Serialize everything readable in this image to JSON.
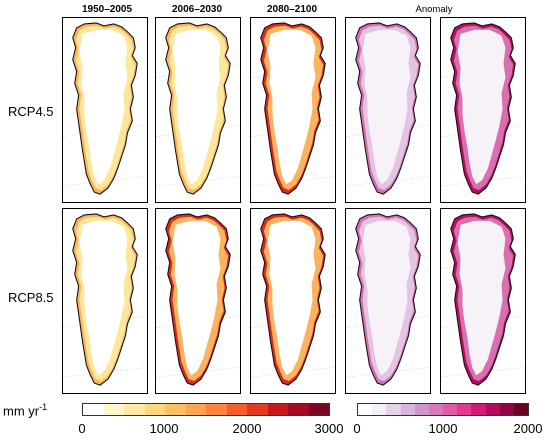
{
  "columns": [
    "1950–2005",
    "2006–2030",
    "2080–2100",
    "Anomaly"
  ],
  "rows": [
    "RCP4.5",
    "RCP8.5"
  ],
  "colorbar_label": "mm yr",
  "colorbar_label_sup": "-1",
  "colorbar_left": {
    "ticks": [
      "0",
      "1000",
      "2000",
      "3000"
    ],
    "colors": [
      "#ffffff",
      "#fff6cc",
      "#ffe9a3",
      "#ffd782",
      "#fec067",
      "#fda552",
      "#fb8440",
      "#f25f2e",
      "#e33a22",
      "#c8171e",
      "#a30b22",
      "#7a0524"
    ]
  },
  "colorbar_right": {
    "ticks": [
      "0",
      "1000",
      "2000"
    ],
    "colors": [
      "#ffffff",
      "#f4eef6",
      "#e6d3e9",
      "#d8b5db",
      "#cf97c9",
      "#d47ab8",
      "#de5ba5",
      "#e33a8c",
      "#d01c73",
      "#b00c5a",
      "#8e0546",
      "#68001f"
    ]
  },
  "map_colors": {
    "coast": "#111111",
    "ice_interior": "#ffffff",
    "anomaly_interior": "#f6f2f8",
    "edge_low": "#fde79a",
    "edge_mid": "#fbb35f",
    "edge_high": "#d92a1e",
    "anom_low": "#e3c4e2",
    "anom_mid": "#d86fb2",
    "anom_high": "#b5105c"
  }
}
